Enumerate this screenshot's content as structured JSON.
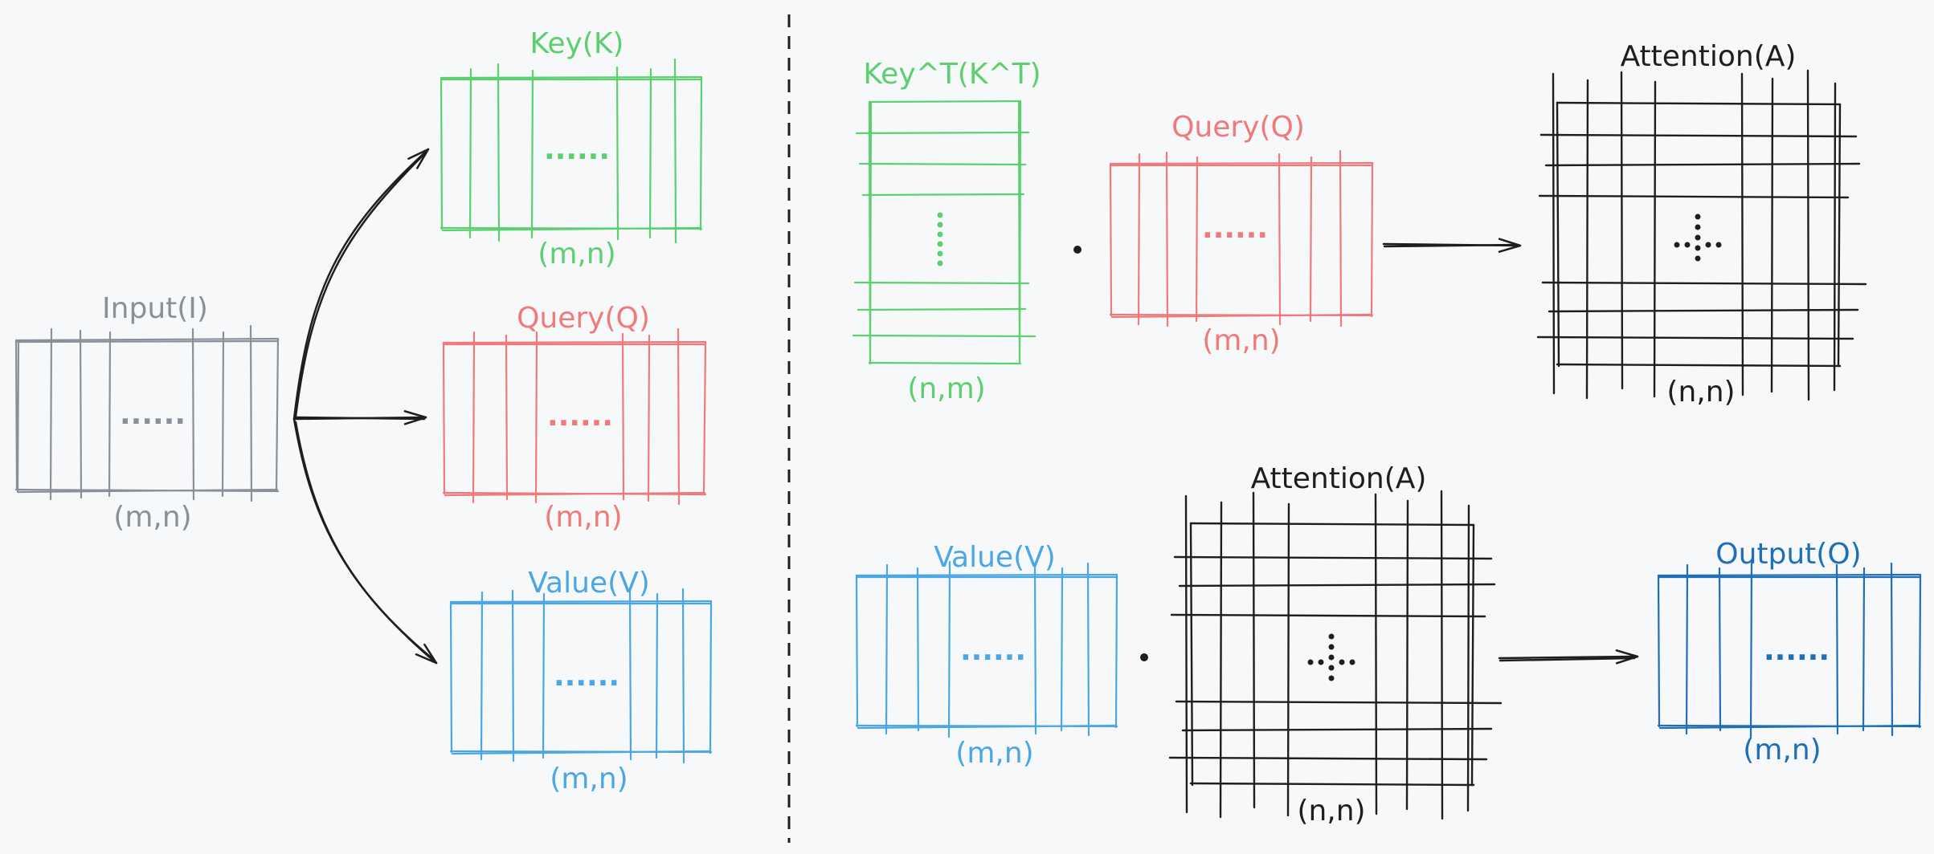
{
  "colors": {
    "gray": "#8a8f99",
    "green": "#5ccf6e",
    "red": "#f07a7a",
    "blue": "#4ba6e6",
    "darkblue": "#1f6fb8",
    "black": "#1e1e1e",
    "background": "#f7f8fa"
  },
  "left": {
    "input": {
      "title": "Input(I)",
      "shape": "(m,n)",
      "ellipsis": "......"
    },
    "key": {
      "title": "Key(K)",
      "shape": "(m,n)",
      "ellipsis": "......"
    },
    "query": {
      "title": "Query(Q)",
      "shape": "(m,n)",
      "ellipsis": "......"
    },
    "value": {
      "title": "Value(V)",
      "shape": "(m,n)",
      "ellipsis": "......"
    }
  },
  "right_top": {
    "key_t": {
      "title": "Key^T(K^T)",
      "shape": "(n,m)"
    },
    "query": {
      "title": "Query(Q)",
      "shape": "(m,n)",
      "ellipsis": "......"
    },
    "attention": {
      "title": "Attention(A)",
      "shape": "(n,n)"
    }
  },
  "right_bottom": {
    "value": {
      "title": "Value(V)",
      "shape": "(m,n)",
      "ellipsis": "......"
    },
    "attention": {
      "title": "Attention(A)",
      "shape": "(n,n)"
    },
    "output": {
      "title": "Output(O)",
      "shape": "(m,n)",
      "ellipsis": "......"
    }
  }
}
